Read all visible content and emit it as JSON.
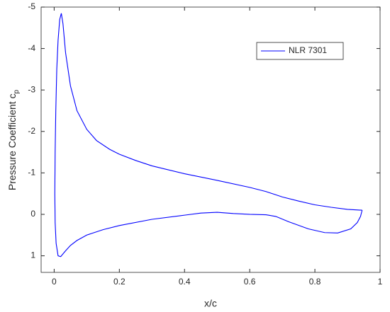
{
  "chart_data": {
    "type": "line",
    "xlabel": "x/c",
    "ylabel": "Pressure Coefficient c",
    "ylabel_subscript": "p",
    "x": [
      0.945,
      0.94,
      0.93,
      0.91,
      0.87,
      0.83,
      0.78,
      0.72,
      0.68,
      0.65,
      0.6,
      0.55,
      0.5,
      0.45,
      0.4,
      0.3,
      0.2,
      0.15,
      0.1,
      0.07,
      0.05,
      0.035,
      0.02,
      0.012,
      0.006,
      0.003,
      0.002,
      0.003,
      0.005,
      0.008,
      0.012,
      0.017,
      0.022,
      0.027,
      0.035,
      0.05,
      0.07,
      0.1,
      0.13,
      0.17,
      0.2,
      0.25,
      0.3,
      0.4,
      0.5,
      0.6,
      0.65,
      0.7,
      0.75,
      0.8,
      0.85,
      0.9,
      0.945
    ],
    "series": [
      {
        "name": "NLR 7301",
        "color": "#0000ff",
        "values": [
          -0.1,
          0.05,
          0.2,
          0.35,
          0.45,
          0.44,
          0.35,
          0.18,
          0.05,
          0.01,
          0.0,
          -0.02,
          -0.05,
          -0.03,
          0.02,
          0.12,
          0.27,
          0.37,
          0.5,
          0.63,
          0.75,
          0.88,
          1.02,
          1.0,
          0.7,
          0.2,
          -0.5,
          -1.5,
          -2.5,
          -3.5,
          -4.2,
          -4.7,
          -4.85,
          -4.6,
          -3.9,
          -3.1,
          -2.5,
          -2.05,
          -1.78,
          -1.57,
          -1.45,
          -1.3,
          -1.17,
          -0.98,
          -0.82,
          -0.65,
          -0.55,
          -0.42,
          -0.32,
          -0.23,
          -0.17,
          -0.12,
          -0.1
        ]
      }
    ],
    "xlim": [
      -0.04,
      1
    ],
    "xticks": [
      0,
      0.2,
      0.4,
      0.6,
      0.8,
      1
    ],
    "ylim": [
      -5,
      1.4
    ],
    "yticks": [
      -5,
      -4,
      -3,
      -2,
      -1,
      0,
      1
    ],
    "y_reversed": true,
    "legend": "upper right"
  }
}
